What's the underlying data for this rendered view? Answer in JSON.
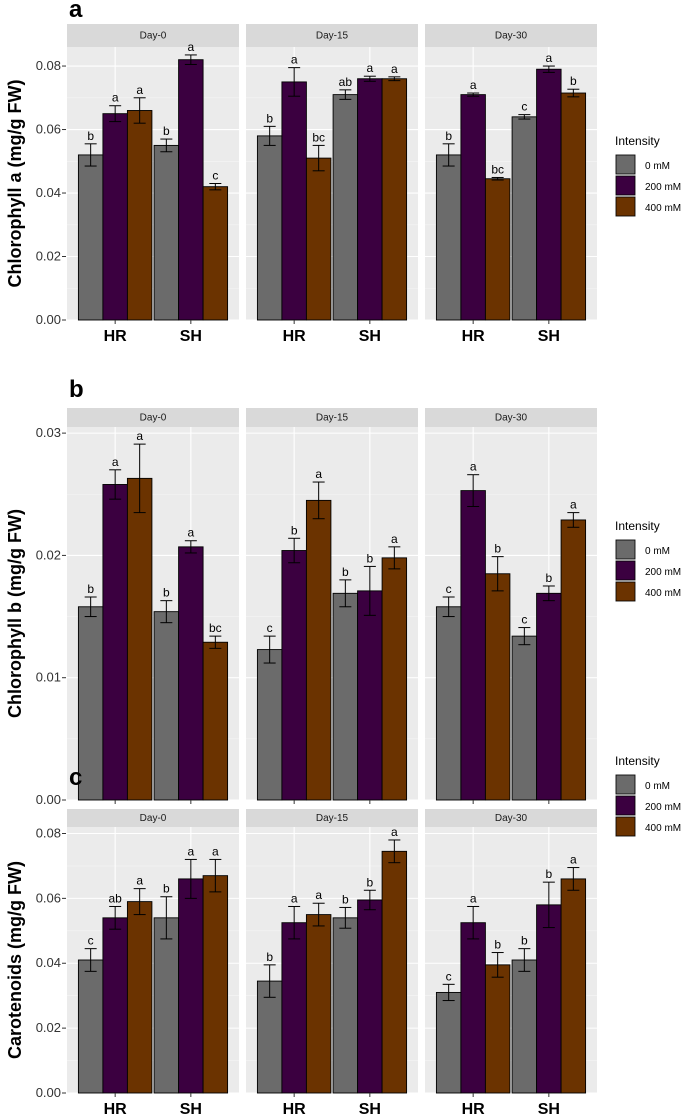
{
  "figure": {
    "facets": [
      "Day-0",
      "Day-15",
      "Day-30"
    ],
    "categories": [
      "HR",
      "SH"
    ],
    "legend": {
      "title": "Intensity",
      "entries": [
        {
          "label": "0 mM",
          "color": "#6b6b6b"
        },
        {
          "label": "200 mM",
          "color": "#3b0040"
        },
        {
          "label": "400 mM",
          "color": "#6b3300"
        }
      ]
    }
  },
  "chart_data": [
    {
      "type": "bar",
      "panel_letter": "a",
      "ylabel": "Chlorophyll a (mg/g FW)",
      "ylim": [
        0,
        0.086
      ],
      "yticks": [
        0,
        0.02,
        0.04,
        0.06,
        0.08
      ],
      "ytick_labels": [
        "0.00",
        "0.02",
        "0.04",
        "0.06",
        "0.08"
      ],
      "facets": [
        {
          "name": "Day-0",
          "groups": [
            {
              "category": "HR",
              "values": [
                0.052,
                0.065,
                0.066
              ],
              "errors": [
                0.0035,
                0.0025,
                0.004
              ],
              "letters": [
                "b",
                "a",
                "a"
              ]
            },
            {
              "category": "SH",
              "values": [
                0.055,
                0.082,
                0.042
              ],
              "errors": [
                0.002,
                0.0015,
                0.001
              ],
              "letters": [
                "b",
                "a",
                "c"
              ]
            }
          ]
        },
        {
          "name": "Day-15",
          "groups": [
            {
              "category": "HR",
              "values": [
                0.058,
                0.075,
                0.051
              ],
              "errors": [
                0.003,
                0.0045,
                0.004
              ],
              "letters": [
                "b",
                "a",
                "bc"
              ]
            },
            {
              "category": "SH",
              "values": [
                0.071,
                0.076,
                0.076
              ],
              "errors": [
                0.0015,
                0.0008,
                0.0006
              ],
              "letters": [
                "ab",
                "a",
                "a"
              ]
            }
          ]
        },
        {
          "name": "Day-30",
          "groups": [
            {
              "category": "HR",
              "values": [
                0.052,
                0.071,
                0.0445
              ],
              "errors": [
                0.0035,
                0.0005,
                0.0004
              ],
              "letters": [
                "b",
                "a",
                "bc"
              ]
            },
            {
              "category": "SH",
              "values": [
                0.064,
                0.079,
                0.0715
              ],
              "errors": [
                0.0007,
                0.001,
                0.0012
              ],
              "letters": [
                "c",
                "a",
                "b"
              ]
            }
          ]
        }
      ]
    },
    {
      "type": "bar",
      "panel_letter": "b",
      "ylabel": "Chlorophyll b (mg/g FW)",
      "ylim": [
        0,
        0.0305
      ],
      "yticks": [
        0,
        0.01,
        0.02,
        0.03
      ],
      "ytick_labels": [
        "0.00",
        "0.01",
        "0.02",
        "0.03"
      ],
      "facets": [
        {
          "name": "Day-0",
          "groups": [
            {
              "category": "HR",
              "values": [
                0.0158,
                0.0258,
                0.0263
              ],
              "errors": [
                0.0008,
                0.0012,
                0.0028
              ],
              "letters": [
                "b",
                "a",
                "a"
              ]
            },
            {
              "category": "SH",
              "values": [
                0.0154,
                0.0207,
                0.0129
              ],
              "errors": [
                0.0009,
                0.0005,
                0.0005
              ],
              "letters": [
                "b",
                "a",
                "bc"
              ]
            }
          ]
        },
        {
          "name": "Day-15",
          "groups": [
            {
              "category": "HR",
              "values": [
                0.0123,
                0.0204,
                0.0245
              ],
              "errors": [
                0.0011,
                0.001,
                0.0015
              ],
              "letters": [
                "c",
                "b",
                "a"
              ]
            },
            {
              "category": "SH",
              "values": [
                0.0169,
                0.0171,
                0.0198
              ],
              "errors": [
                0.0011,
                0.002,
                0.0009
              ],
              "letters": [
                "b",
                "b",
                "a"
              ]
            }
          ]
        },
        {
          "name": "Day-30",
          "groups": [
            {
              "category": "HR",
              "values": [
                0.0158,
                0.0253,
                0.0185
              ],
              "errors": [
                0.0008,
                0.0013,
                0.0014
              ],
              "letters": [
                "c",
                "a",
                "b"
              ]
            },
            {
              "category": "SH",
              "values": [
                0.0134,
                0.0169,
                0.0229
              ],
              "errors": [
                0.0007,
                0.0006,
                0.0006
              ],
              "letters": [
                "c",
                "b",
                "a"
              ]
            }
          ]
        }
      ]
    },
    {
      "type": "bar",
      "panel_letter": "c",
      "ylabel": "Carotenoids (mg/g FW)",
      "ylim": [
        0,
        0.082
      ],
      "yticks": [
        0,
        0.02,
        0.04,
        0.06,
        0.08
      ],
      "ytick_labels": [
        "0.00",
        "0.02",
        "0.04",
        "0.06",
        "0.08"
      ],
      "facets": [
        {
          "name": "Day-0",
          "groups": [
            {
              "category": "HR",
              "values": [
                0.041,
                0.054,
                0.059
              ],
              "errors": [
                0.0035,
                0.0035,
                0.004
              ],
              "letters": [
                "c",
                "ab",
                "a"
              ]
            },
            {
              "category": "SH",
              "values": [
                0.054,
                0.066,
                0.067
              ],
              "errors": [
                0.0065,
                0.006,
                0.005
              ],
              "letters": [
                "b",
                "a",
                "a"
              ]
            }
          ]
        },
        {
          "name": "Day-15",
          "groups": [
            {
              "category": "HR",
              "values": [
                0.0345,
                0.0525,
                0.055
              ],
              "errors": [
                0.005,
                0.005,
                0.0035
              ],
              "letters": [
                "b",
                "a",
                "a"
              ]
            },
            {
              "category": "SH",
              "values": [
                0.054,
                0.0595,
                0.0745
              ],
              "errors": [
                0.0032,
                0.003,
                0.0035
              ],
              "letters": [
                "b",
                "b",
                "a"
              ]
            }
          ]
        },
        {
          "name": "Day-30",
          "groups": [
            {
              "category": "HR",
              "values": [
                0.031,
                0.0525,
                0.0395
              ],
              "errors": [
                0.0025,
                0.005,
                0.0038
              ],
              "letters": [
                "c",
                "a",
                "b"
              ]
            },
            {
              "category": "SH",
              "values": [
                0.041,
                0.058,
                0.066
              ],
              "errors": [
                0.0035,
                0.007,
                0.0035
              ],
              "letters": [
                "b",
                "b",
                "a"
              ]
            }
          ]
        }
      ]
    }
  ]
}
